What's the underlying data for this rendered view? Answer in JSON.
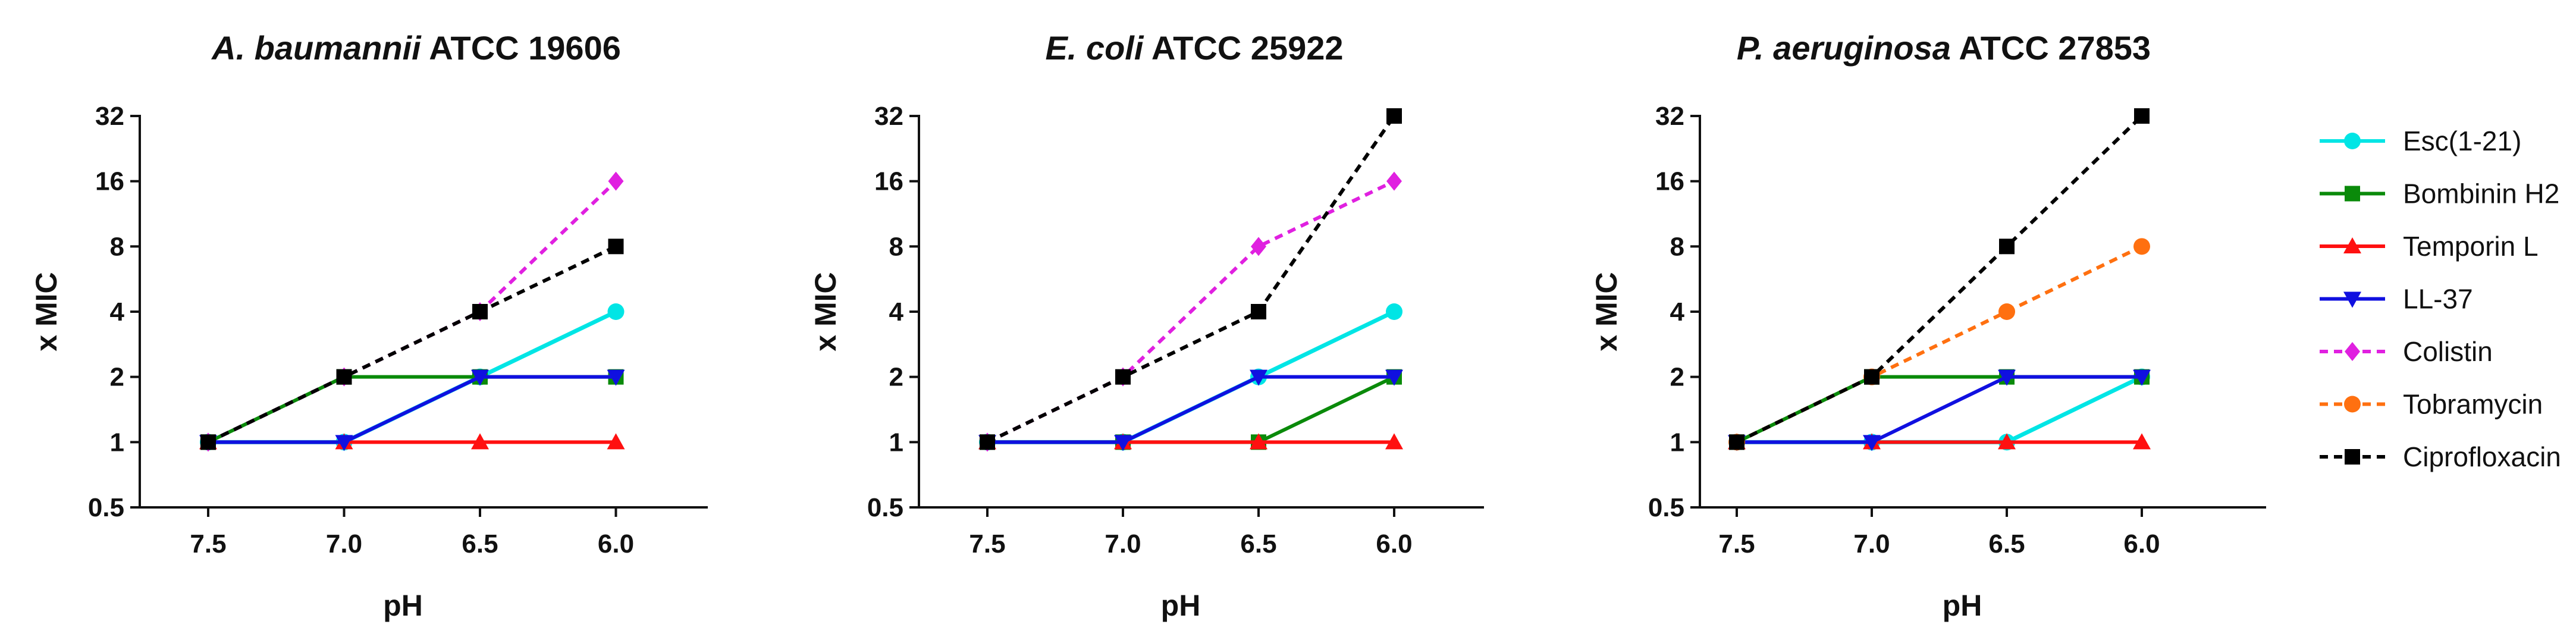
{
  "chart_data": [
    {
      "type": "line",
      "title_italic": "A. baumannii",
      "title_rest": " ATCC 19606",
      "xlabel": "pH",
      "ylabel": "x MIC",
      "categories": [
        "7.5",
        "7.0",
        "6.5",
        "6.0"
      ],
      "yticks": [
        "0.5",
        "1",
        "2",
        "4",
        "8",
        "16",
        "32"
      ],
      "ylim": [
        0.5,
        32
      ],
      "yscale": "log2",
      "series": [
        {
          "name": "Esc(1-21)",
          "values": [
            1,
            1,
            2,
            4
          ]
        },
        {
          "name": "Bombinin H2",
          "values": [
            1,
            2,
            2,
            2
          ]
        },
        {
          "name": "Temporin L",
          "values": [
            1,
            1,
            1,
            1
          ]
        },
        {
          "name": "LL-37",
          "values": [
            1,
            1,
            2,
            2
          ]
        },
        {
          "name": "Colistin",
          "values": [
            1,
            2,
            4,
            16
          ]
        },
        {
          "name": "Ciprofloxacin",
          "values": [
            1,
            2,
            4,
            8
          ]
        }
      ]
    },
    {
      "type": "line",
      "title_italic": "E. coli",
      "title_rest": " ATCC 25922",
      "xlabel": "pH",
      "ylabel": "x MIC",
      "categories": [
        "7.5",
        "7.0",
        "6.5",
        "6.0"
      ],
      "yticks": [
        "0.5",
        "1",
        "2",
        "4",
        "8",
        "16",
        "32"
      ],
      "ylim": [
        0.5,
        32
      ],
      "yscale": "log2",
      "series": [
        {
          "name": "Esc(1-21)",
          "values": [
            1,
            1,
            2,
            4
          ]
        },
        {
          "name": "Bombinin H2",
          "values": [
            1,
            1,
            1,
            2
          ]
        },
        {
          "name": "Temporin L",
          "values": [
            1,
            1,
            1,
            1
          ]
        },
        {
          "name": "LL-37",
          "values": [
            1,
            1,
            2,
            2
          ]
        },
        {
          "name": "Colistin",
          "values": [
            1,
            2,
            8,
            16
          ]
        },
        {
          "name": "Ciprofloxacin",
          "values": [
            1,
            2,
            4,
            32
          ]
        }
      ]
    },
    {
      "type": "line",
      "title_italic": "P. aeruginosa",
      "title_rest": " ATCC 27853",
      "xlabel": "pH",
      "ylabel": "x MIC",
      "categories": [
        "7.5",
        "7.0",
        "6.5",
        "6.0"
      ],
      "yticks": [
        "0.5",
        "1",
        "2",
        "4",
        "8",
        "16",
        "32"
      ],
      "ylim": [
        0.5,
        32
      ],
      "yscale": "log2",
      "series": [
        {
          "name": "Esc(1-21)",
          "values": [
            1,
            1,
            1,
            2
          ]
        },
        {
          "name": "Bombinin H2",
          "values": [
            1,
            2,
            2,
            2
          ]
        },
        {
          "name": "Temporin L",
          "values": [
            1,
            1,
            1,
            1
          ]
        },
        {
          "name": "LL-37",
          "values": [
            1,
            1,
            2,
            2
          ]
        },
        {
          "name": "Tobramycin",
          "values": [
            1,
            2,
            4,
            8
          ]
        },
        {
          "name": "Ciprofloxacin",
          "values": [
            1,
            2,
            8,
            32
          ]
        }
      ]
    }
  ],
  "legend": {
    "placement": "right",
    "items": [
      {
        "name": "Esc(1-21)",
        "color": "#00E5E5",
        "marker": "circle",
        "dashed": false
      },
      {
        "name": "Bombinin H2",
        "color": "#0A8A0A",
        "marker": "square",
        "dashed": false
      },
      {
        "name": "Temporin L",
        "color": "#FF1010",
        "marker": "triangle-up",
        "dashed": false
      },
      {
        "name": "LL-37",
        "color": "#1010E0",
        "marker": "triangle-down",
        "dashed": false
      },
      {
        "name": "Colistin",
        "color": "#E020E0",
        "marker": "diamond",
        "dashed": true
      },
      {
        "name": "Tobramycin",
        "color": "#FF7010",
        "marker": "circle",
        "dashed": true
      },
      {
        "name": "Ciprofloxacin",
        "color": "#000000",
        "marker": "square",
        "dashed": true
      }
    ]
  }
}
